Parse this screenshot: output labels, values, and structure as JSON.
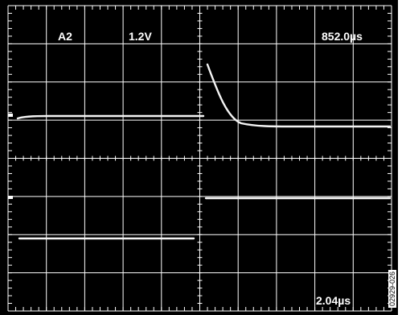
{
  "display": {
    "channel_label": "A2",
    "volts_per_div": "1.2V",
    "time_readout": "852.0µs",
    "bottom_readout": "2.04µs",
    "figure_id": "02929-026",
    "colors": {
      "background": "#000000",
      "grid": "#ffffff",
      "trace": "#ffffff"
    },
    "grid": {
      "horizontal_divisions": 10,
      "vertical_divisions": 8,
      "minor_ticks_per_division": 5
    }
  }
}
